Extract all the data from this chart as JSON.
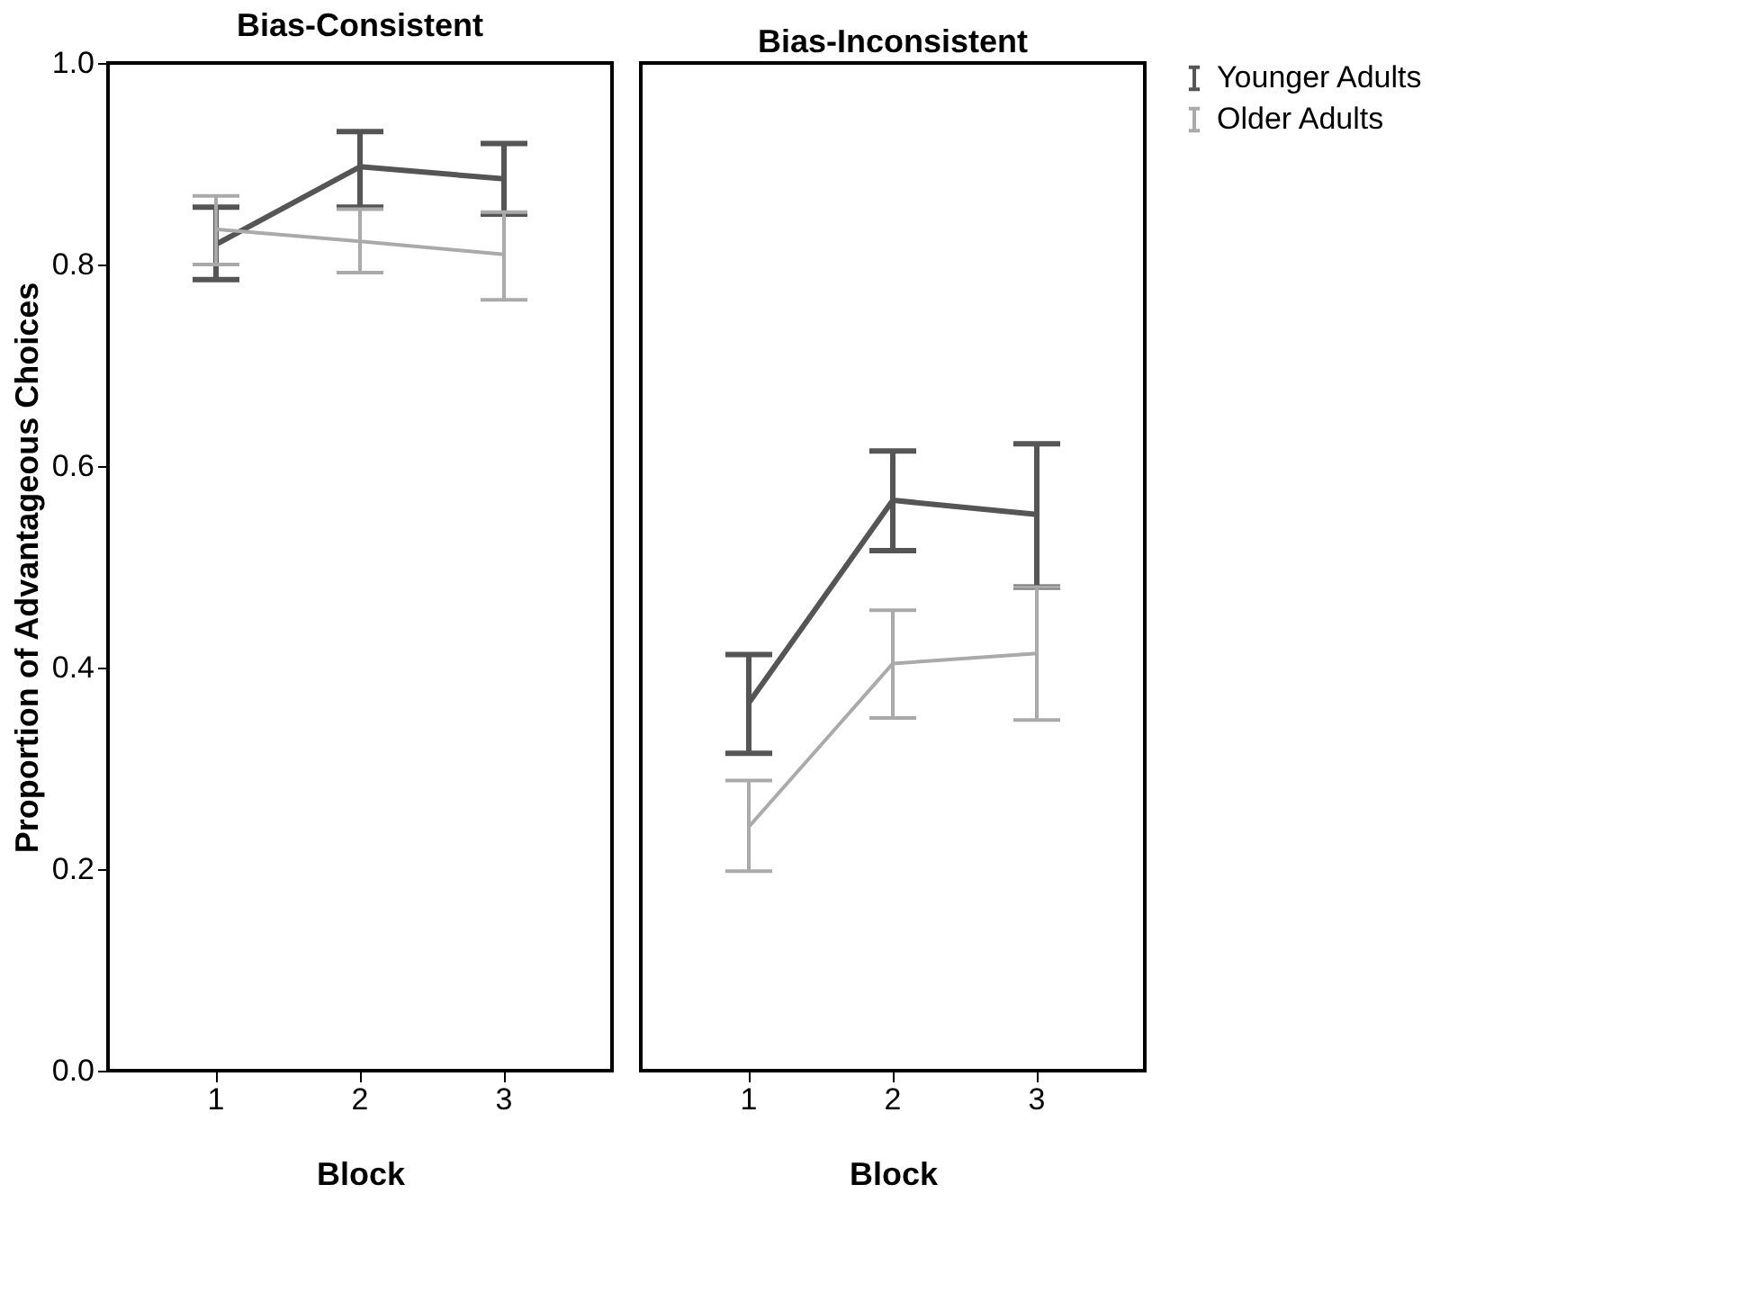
{
  "chart_data": [
    {
      "type": "line",
      "title": "Bias-Consistent",
      "xlabel": "Block",
      "ylabel": "Proportion of Advantageous Choices",
      "categories": [
        "1",
        "2",
        "3"
      ],
      "ylim": [
        0,
        1.0
      ],
      "yticks": [
        {
          "value": 0,
          "label": "0.0"
        },
        0.2,
        0.4,
        0.6,
        0.8,
        {
          "value": 1.0,
          "label": "1.0"
        }
      ],
      "grid": false,
      "legend": "top right",
      "marker": "none",
      "line_style": "solid",
      "series": [
        {
          "name": "Younger Adults",
          "color": "#555555",
          "values": [
            0.82,
            0.897,
            0.885
          ],
          "errors": [
            [
              0.785,
              0.857
            ],
            [
              0.857,
              0.932
            ],
            [
              0.85,
              0.92
            ]
          ]
        },
        {
          "name": "Older Adults",
          "color": "#aaaaaa",
          "values": [
            0.835,
            0.823,
            0.81
          ],
          "errors": [
            [
              0.8,
              0.868
            ],
            [
              0.792,
              0.855
            ],
            [
              0.765,
              0.852
            ]
          ]
        }
      ]
    },
    {
      "type": "line",
      "title": "Bias-Inconsistent",
      "xlabel": "Block",
      "categories": [
        "1",
        "2",
        "3"
      ],
      "ylim": [
        0,
        1.0
      ],
      "tick_labels": "x",
      "grid": false,
      "legend": "top right",
      "marker": "none",
      "line_style": "solid",
      "series": [
        {
          "name": "Younger Adults",
          "color": "#555555",
          "values": [
            0.365,
            0.566,
            0.552
          ],
          "errors": [
            [
              0.315,
              0.413
            ],
            [
              0.516,
              0.615
            ],
            [
              0.48,
              0.622
            ]
          ]
        },
        {
          "name": "Older Adults",
          "color": "#aaaaaa",
          "values": [
            0.242,
            0.404,
            0.414
          ],
          "errors": [
            [
              0.198,
              0.288
            ],
            [
              0.35,
              0.457
            ],
            [
              0.348,
              0.48
            ]
          ]
        }
      ]
    }
  ]
}
